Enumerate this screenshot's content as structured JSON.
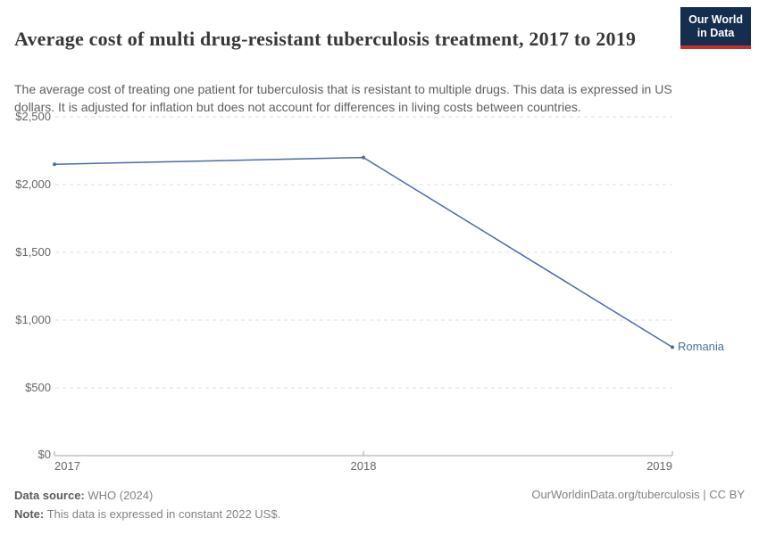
{
  "header": {
    "title": "Average cost of multi drug-resistant tuberculosis treatment, 2017 to 2019",
    "subtitle": "The average cost of treating one patient for tuberculosis that is resistant to multiple drugs. This data is expressed in US dollars. It is adjusted for inflation but does not account for differences in living costs between countries.",
    "logo": {
      "line1": "Our World",
      "line2": "in Data"
    }
  },
  "chart_data": {
    "type": "line",
    "title": "Average cost of multi drug-resistant tuberculosis treatment, 2017 to 2019",
    "x": [
      2017,
      2018,
      2019
    ],
    "xtick_labels": [
      "2017",
      "2018",
      "2019"
    ],
    "series": [
      {
        "name": "Romania",
        "values": [
          2150,
          2200,
          800
        ],
        "color": "#4c6ba8"
      }
    ],
    "ylim": [
      0,
      2500
    ],
    "yticks": [
      0,
      500,
      1000,
      1500,
      2000,
      2500
    ],
    "ytick_labels": [
      "$0",
      "$500",
      "$1,000",
      "$1,500",
      "$2,000",
      "$2,500"
    ],
    "xlabel": "",
    "ylabel": "",
    "grid": "horizontal-dashed",
    "legend_position": "end-of-line-label"
  },
  "footer": {
    "datasource_label": "Data source:",
    "datasource_value": " WHO (2024)",
    "note_label": "Note:",
    "note_value": " This data is expressed in constant 2022 US$.",
    "link": "OurWorldinData.org/tuberculosis | CC BY"
  },
  "colors": {
    "line_blue": "#4c6ba8",
    "logo_navy": "#152d4e",
    "logo_red": "#c4302b",
    "gridline": "#dedede",
    "axis": "#a3a3a3",
    "title_text": "#383838",
    "muted_text": "#5f5f5f"
  }
}
